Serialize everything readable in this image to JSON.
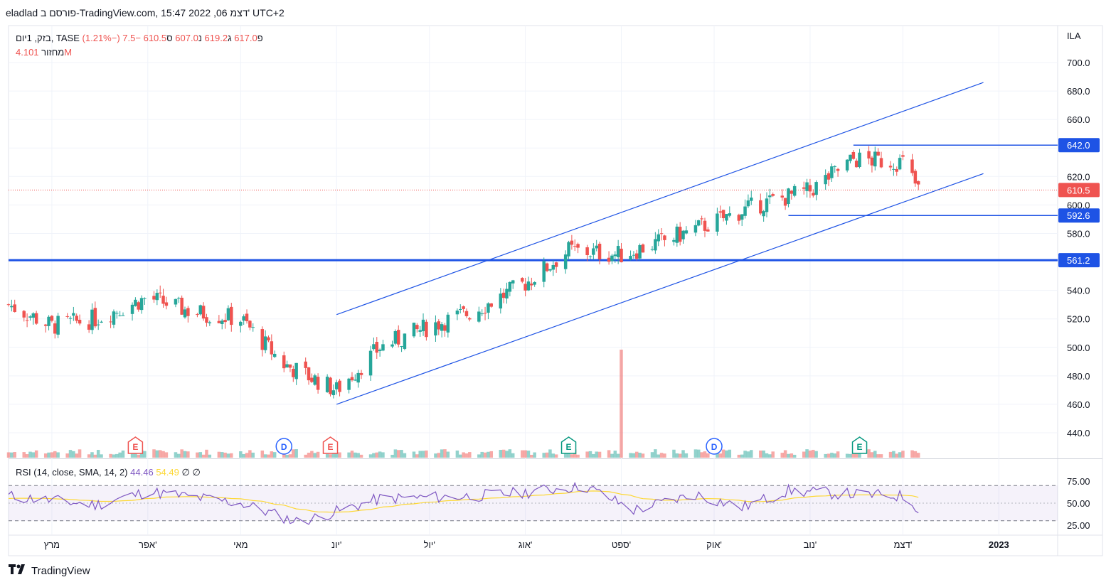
{
  "header": {
    "title": "eladlad פורסם ב-TradingView.com, 15:47 2022 ,06 דצמ' UTC+2"
  },
  "legend": {
    "symbol": "בזק, 1יום, TASE",
    "open_label": "פ",
    "open": "617.0",
    "high_label": "ג",
    "high": "619.2",
    "low_label": "נ",
    "low": "607.0",
    "close_label": "ס",
    "close": "610.5",
    "change": "−7.5 (−1.21%)",
    "volume_label": "מחזור",
    "volume": "4.101M"
  },
  "currency": "ILA",
  "price_axis": {
    "ticks": [
      "700.0",
      "680.0",
      "660.0",
      "640.0",
      "620.0",
      "600.0",
      "580.0",
      "540.0",
      "520.0",
      "500.0",
      "480.0",
      "460.0",
      "440.0"
    ]
  },
  "price_tags": [
    {
      "label": "642.0",
      "color": "#1e53e5"
    },
    {
      "label": "610.5",
      "color": "#ef5350"
    },
    {
      "label": "592.6",
      "color": "#1e53e5"
    },
    {
      "label": "561.2",
      "color": "#1e53e5"
    }
  ],
  "time_axis": {
    "labels": [
      "מרץ",
      "אפר'",
      "מאי",
      "יונ'",
      "יול'",
      "אוג'",
      "ספט'",
      "אוק'",
      "נוב'",
      "דצמ'",
      "2023"
    ]
  },
  "events": [
    {
      "letter": "E",
      "kind": "earnings-red"
    },
    {
      "letter": "D",
      "kind": "dividend"
    },
    {
      "letter": "E",
      "kind": "earnings-red"
    },
    {
      "letter": "E",
      "kind": "earnings-green"
    },
    {
      "letter": "D",
      "kind": "dividend"
    },
    {
      "letter": "E",
      "kind": "earnings-green"
    }
  ],
  "rsi": {
    "label": "RSI (14, close, SMA, 14, 2)",
    "value": "44.46",
    "sma": "54.49",
    "extra1": "∅",
    "extra2": "∅",
    "ticks": [
      "75.00",
      "50.00",
      "25.00"
    ]
  },
  "footer": {
    "brand": "TradingView"
  },
  "colors": {
    "up": "#26a69a",
    "down": "#ef5350",
    "line": "#1e53e5",
    "rsi": "#7e57c2",
    "rsi_ma": "#fdd835"
  },
  "chart_data": {
    "type": "candlestick",
    "symbol": "TASE:BEZQ",
    "interval": "1D",
    "ylim": [
      430,
      710
    ],
    "x_range": [
      "2022-02-15",
      "2023-01-20"
    ],
    "horizontal_levels": [
      642.0,
      592.6,
      561.2
    ],
    "last_close": 610.5,
    "trend_channel": {
      "upper": [
        [
          "2022-06-01",
          523
        ],
        [
          "2022-12-27",
          686
        ]
      ],
      "lower": [
        [
          "2022-06-01",
          460
        ],
        [
          "2022-12-27",
          622
        ]
      ]
    },
    "series": [
      {
        "name": "price",
        "points": [
          [
            "2022-02-15",
            530
          ],
          [
            "2022-03-01",
            515
          ],
          [
            "2022-03-15",
            520
          ],
          [
            "2022-04-01",
            535
          ],
          [
            "2022-04-15",
            525
          ],
          [
            "2022-05-01",
            520
          ],
          [
            "2022-05-15",
            488
          ],
          [
            "2022-06-01",
            470
          ],
          [
            "2022-06-15",
            500
          ],
          [
            "2022-07-01",
            515
          ],
          [
            "2022-07-15",
            525
          ],
          [
            "2022-08-01",
            545
          ],
          [
            "2022-08-15",
            568
          ],
          [
            "2022-09-01",
            565
          ],
          [
            "2022-09-15",
            575
          ],
          [
            "2022-10-01",
            588
          ],
          [
            "2022-10-15",
            600
          ],
          [
            "2022-11-01",
            610
          ],
          [
            "2022-11-15",
            632
          ],
          [
            "2022-12-01",
            630
          ],
          [
            "2022-12-06",
            610.5
          ]
        ]
      },
      {
        "name": "RSI",
        "points": [
          [
            "2022-02-15",
            58
          ],
          [
            "2022-03-15",
            48
          ],
          [
            "2022-04-01",
            63
          ],
          [
            "2022-05-01",
            50
          ],
          [
            "2022-05-20",
            28
          ],
          [
            "2022-06-15",
            55
          ],
          [
            "2022-07-15",
            58
          ],
          [
            "2022-08-01",
            62
          ],
          [
            "2022-08-20",
            70
          ],
          [
            "2022-09-05",
            42
          ],
          [
            "2022-09-25",
            60
          ],
          [
            "2022-10-10",
            45
          ],
          [
            "2022-10-25",
            64
          ],
          [
            "2022-11-15",
            60
          ],
          [
            "2022-12-01",
            58
          ],
          [
            "2022-12-06",
            44.46
          ]
        ]
      }
    ],
    "volume_spike": [
      "2022-09-01",
      90
    ]
  }
}
